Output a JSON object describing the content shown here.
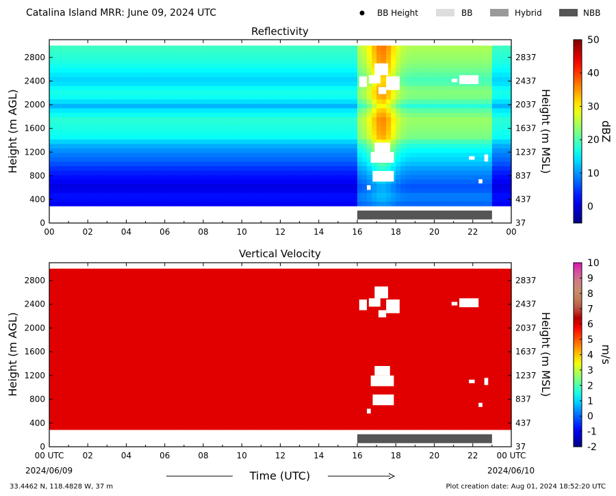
{
  "header": {
    "title": "Catalina Island MRR:  June 09, 2024 UTC",
    "legend": [
      {
        "label": "BB Height",
        "marker": "dot",
        "color": "#000000"
      },
      {
        "label": "BB",
        "marker": "box",
        "color": "#dddddd"
      },
      {
        "label": "Hybrid",
        "marker": "box",
        "color": "#999999"
      },
      {
        "label": "NBB",
        "marker": "box",
        "color": "#555555"
      }
    ]
  },
  "footer": {
    "location": "33.4462 N, 118.4828 W, 37 m",
    "creation_date": "Plot creation date: Aug 01, 2024 18:52:20 UTC",
    "time_axis_label": "Time (UTC)",
    "start_date": "2024/06/09",
    "end_date": "2024/06/10"
  },
  "chart_data": [
    {
      "type": "heatmap",
      "title": "Reflectivity",
      "ylabel": "Height (m AGL)",
      "ylabel_right": "Height (m MSL)",
      "colorbar_label": "dBZ",
      "colorbar_ticks": [
        "50",
        "40",
        "30",
        "20",
        "10",
        "0"
      ],
      "colorbar_range": [
        -5,
        50
      ],
      "colormap": "jet",
      "xlim": [
        0,
        24
      ],
      "ylim": [
        0,
        3100
      ],
      "xticks": [
        "00",
        "02",
        "04",
        "06",
        "08",
        "10",
        "12",
        "14",
        "16",
        "18",
        "20",
        "22",
        "00"
      ],
      "yticks_left": [
        "0",
        "400",
        "800",
        "1200",
        "1600",
        "2000",
        "2400",
        "2800"
      ],
      "yticks_right": [
        "37",
        "437",
        "837",
        "1237",
        "1637",
        "2037",
        "2437",
        "2837"
      ],
      "data_bottom_m": 290,
      "data_top_m": 3000,
      "profile_background": [
        {
          "h": 300,
          "dbz": 1
        },
        {
          "h": 450,
          "dbz": 3
        },
        {
          "h": 600,
          "dbz": 0
        },
        {
          "h": 750,
          "dbz": 2
        },
        {
          "h": 900,
          "dbz": 4
        },
        {
          "h": 1050,
          "dbz": 7
        },
        {
          "h": 1200,
          "dbz": 9
        },
        {
          "h": 1350,
          "dbz": 12
        },
        {
          "h": 1450,
          "dbz": 16
        },
        {
          "h": 1600,
          "dbz": 17
        },
        {
          "h": 1750,
          "dbz": 18
        },
        {
          "h": 1900,
          "dbz": 15
        },
        {
          "h": 2000,
          "dbz": 11
        },
        {
          "h": 2100,
          "dbz": 16
        },
        {
          "h": 2250,
          "dbz": 17
        },
        {
          "h": 2400,
          "dbz": 13
        },
        {
          "h": 2550,
          "dbz": 15
        },
        {
          "h": 2700,
          "dbz": 17
        },
        {
          "h": 2850,
          "dbz": 18
        },
        {
          "h": 3000,
          "dbz": 19
        }
      ],
      "enhanced_period": {
        "start_h": 16,
        "end_h": 23,
        "dbz_boost": 6,
        "peak_h": 17.3,
        "peak_boost": 12
      },
      "bright_band_bar": {
        "start_h": 16.0,
        "end_h": 23.0,
        "height_m": 130,
        "class": "NBB"
      }
    },
    {
      "type": "heatmap",
      "title": "Vertical Velocity",
      "ylabel": "Height (m AGL)",
      "ylabel_right": "Height (m MSL)",
      "colorbar_label": "m/s",
      "colorbar_ticks": [
        "10",
        "9",
        "8",
        "7",
        "6",
        "5",
        "4",
        "3",
        "2",
        "1",
        "0",
        "-1",
        "-2"
      ],
      "colorbar_range": [
        -2,
        10
      ],
      "colormap": "jet-magenta",
      "xlim": [
        0,
        24
      ],
      "ylim": [
        0,
        3100
      ],
      "xticks": [
        "00 UTC",
        "02",
        "04",
        "06",
        "08",
        "10",
        "12",
        "14",
        "16",
        "18",
        "20",
        "22",
        "00 UTC"
      ],
      "yticks_left": [
        "0",
        "400",
        "800",
        "1200",
        "1600",
        "2000",
        "2400",
        "2800"
      ],
      "yticks_right": [
        "37",
        "437",
        "837",
        "1237",
        "1637",
        "2037",
        "2437",
        "2837"
      ],
      "data_bottom_m": 290,
      "data_top_m": 3000,
      "value_everywhere_ms": 6,
      "bright_band_bar": {
        "start_h": 16.0,
        "end_h": 23.0,
        "height_m": 130,
        "class": "NBB"
      }
    }
  ],
  "gaps": [
    {
      "t0": 16.1,
      "t1": 16.5,
      "h0": 2300,
      "h1": 2480
    },
    {
      "t0": 16.6,
      "t1": 17.2,
      "h0": 2360,
      "h1": 2500
    },
    {
      "t0": 16.9,
      "t1": 17.6,
      "h0": 2500,
      "h1": 2700
    },
    {
      "t0": 17.5,
      "t1": 18.2,
      "h0": 2250,
      "h1": 2480
    },
    {
      "t0": 17.1,
      "t1": 17.5,
      "h0": 2180,
      "h1": 2300
    },
    {
      "t0": 16.7,
      "t1": 17.9,
      "h0": 1020,
      "h1": 1200
    },
    {
      "t0": 16.9,
      "t1": 17.7,
      "h0": 1200,
      "h1": 1360
    },
    {
      "t0": 16.8,
      "t1": 17.9,
      "h0": 700,
      "h1": 880
    },
    {
      "t0": 16.5,
      "t1": 16.7,
      "h0": 560,
      "h1": 640
    },
    {
      "t0": 21.3,
      "t1": 22.3,
      "h0": 2350,
      "h1": 2500
    },
    {
      "t0": 20.9,
      "t1": 21.2,
      "h0": 2380,
      "h1": 2440
    },
    {
      "t0": 21.8,
      "t1": 22.1,
      "h0": 1070,
      "h1": 1130
    },
    {
      "t0": 22.6,
      "t1": 22.8,
      "h0": 1040,
      "h1": 1160
    },
    {
      "t0": 22.3,
      "t1": 22.5,
      "h0": 670,
      "h1": 740
    }
  ]
}
